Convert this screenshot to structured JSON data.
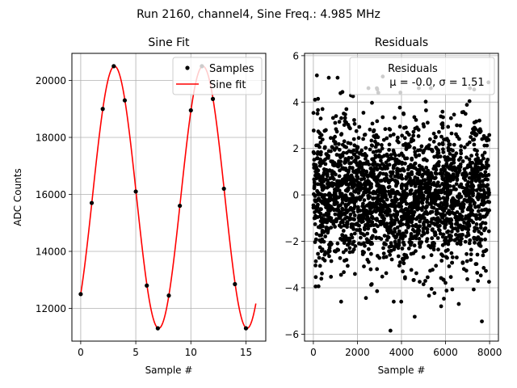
{
  "figure": {
    "suptitle": "Run 2160, channel4, Sine Freq.: 4.985 MHz"
  },
  "chart_data": [
    {
      "type": "line",
      "title": "Sine Fit",
      "xlabel": "Sample #",
      "ylabel": "ADC Counts",
      "xlim": [
        -0.8,
        16.8
      ],
      "ylim": [
        10850,
        20950
      ],
      "xticks": [
        0,
        5,
        10,
        15
      ],
      "yticks": [
        12000,
        14000,
        16000,
        18000,
        20000
      ],
      "ytick_labels": [
        "12000",
        "14000",
        "16000",
        "18000",
        "20000"
      ],
      "grid": true,
      "legend": {
        "position": "top-right",
        "entries": [
          "Samples",
          "Sine fit"
        ]
      },
      "series": [
        {
          "name": "Samples",
          "kind": "scatter",
          "color": "#000000",
          "x": [
            0,
            1,
            2,
            3,
            4,
            5,
            6,
            7,
            8,
            9,
            10,
            11,
            12,
            13,
            14,
            15
          ],
          "y": [
            12500,
            15700,
            19000,
            20500,
            19300,
            16100,
            12800,
            11300,
            12450,
            15600,
            18950,
            20500,
            19350,
            16200,
            12850,
            11300
          ]
        },
        {
          "name": "Sine fit",
          "kind": "line",
          "color": "#ff0000",
          "model": {
            "offset": 15900,
            "amplitude": 4600,
            "period": 8.022,
            "phase_sample": 0.08,
            "x_range": [
              0,
              15.9
            ]
          }
        }
      ]
    },
    {
      "type": "scatter",
      "title": "Residuals",
      "xlabel": "Sample #",
      "ylabel": "",
      "xlim": [
        -400,
        8400
      ],
      "ylim": [
        -6.3,
        6.1
      ],
      "xticks": [
        0,
        2000,
        4000,
        6000,
        8000
      ],
      "yticks": [
        -6,
        -4,
        -2,
        0,
        2,
        4,
        6
      ],
      "ytick_labels": [
        "−6",
        "−4",
        "−2",
        "0",
        "2",
        "4",
        "6"
      ],
      "grid": true,
      "legend": {
        "position": "top-right",
        "entries": [
          "Residuals",
          "μ = -0.0, σ = 1.51"
        ]
      },
      "series": [
        {
          "name": "Residuals",
          "color": "#000000",
          "distribution": {
            "n": 8000,
            "mean": -0.0,
            "sigma": 1.51
          },
          "x": [
            160,
            700,
            1100,
            2500,
            3150,
            3500,
            4600,
            5800,
            6600,
            7650,
            7950,
            2900,
            1800
          ],
          "y": [
            5.15,
            5.05,
            5.05,
            4.6,
            5.1,
            -5.85,
            -5.25,
            -4.8,
            -4.7,
            -5.45,
            4.85,
            4.55,
            4.25
          ]
        }
      ]
    }
  ]
}
